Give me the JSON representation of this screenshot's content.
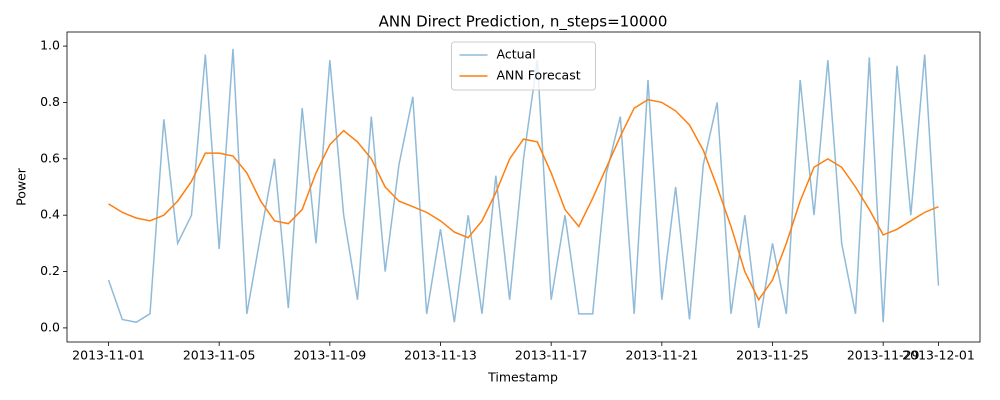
{
  "chart_data": {
    "type": "line",
    "title": "ANN Direct Prediction, n_steps=10000",
    "xlabel": "Timestamp",
    "ylabel": "Power",
    "x": [
      0,
      0.5,
      1,
      1.5,
      2,
      2.5,
      3,
      3.5,
      4,
      4.5,
      5,
      5.5,
      6,
      6.5,
      7,
      7.5,
      8,
      8.5,
      9,
      9.5,
      10,
      10.5,
      11,
      11.5,
      12,
      12.5,
      13,
      13.5,
      14,
      14.5,
      15,
      15.5,
      16,
      16.5,
      17,
      17.5,
      18,
      18.5,
      19,
      19.5,
      20,
      20.5,
      21,
      21.5,
      22,
      22.5,
      23,
      23.5,
      24,
      24.5,
      25,
      25.5,
      26,
      26.5,
      27,
      27.5,
      28,
      28.5,
      29,
      29.5,
      30
    ],
    "series": [
      {
        "name": "Actual",
        "color": "#1f77b4",
        "alpha": 0.5,
        "values": [
          0.17,
          0.03,
          0.02,
          0.05,
          0.74,
          0.3,
          0.4,
          0.97,
          0.28,
          0.99,
          0.05,
          0.33,
          0.6,
          0.07,
          0.78,
          0.3,
          0.95,
          0.4,
          0.1,
          0.75,
          0.2,
          0.58,
          0.82,
          0.05,
          0.35,
          0.02,
          0.4,
          0.05,
          0.54,
          0.1,
          0.6,
          0.95,
          0.1,
          0.4,
          0.05,
          0.05,
          0.55,
          0.75,
          0.05,
          0.88,
          0.1,
          0.5,
          0.03,
          0.58,
          0.8,
          0.05,
          0.4,
          0.0,
          0.3,
          0.05,
          0.88,
          0.4,
          0.95,
          0.3,
          0.05,
          0.96,
          0.02,
          0.93,
          0.4,
          0.97,
          0.15
        ]
      },
      {
        "name": "ANN Forecast",
        "color": "#ff7f0e",
        "alpha": 1,
        "values": [
          0.44,
          0.41,
          0.39,
          0.38,
          0.4,
          0.45,
          0.52,
          0.62,
          0.62,
          0.61,
          0.55,
          0.45,
          0.38,
          0.37,
          0.42,
          0.55,
          0.65,
          0.7,
          0.66,
          0.6,
          0.5,
          0.45,
          0.43,
          0.41,
          0.38,
          0.34,
          0.32,
          0.38,
          0.48,
          0.6,
          0.67,
          0.66,
          0.55,
          0.42,
          0.36,
          0.46,
          0.57,
          0.68,
          0.78,
          0.81,
          0.8,
          0.77,
          0.72,
          0.63,
          0.5,
          0.36,
          0.2,
          0.1,
          0.17,
          0.3,
          0.45,
          0.57,
          0.6,
          0.57,
          0.5,
          0.42,
          0.33,
          0.35,
          0.38,
          0.41,
          0.43
        ]
      }
    ],
    "xlim": [
      -1.5,
      31.5
    ],
    "xticks": [
      {
        "value": 0,
        "label": "2013-11-01"
      },
      {
        "value": 4,
        "label": "2013-11-05"
      },
      {
        "value": 8,
        "label": "2013-11-09"
      },
      {
        "value": 12,
        "label": "2013-11-13"
      },
      {
        "value": 16,
        "label": "2013-11-17"
      },
      {
        "value": 20,
        "label": "2013-11-21"
      },
      {
        "value": 24,
        "label": "2013-11-25"
      },
      {
        "value": 28,
        "label": "2013-11-29"
      },
      {
        "value": 30,
        "label": "2013-12-01"
      }
    ],
    "ylim": [
      -0.05,
      1.05
    ],
    "yticks": [
      {
        "value": 0,
        "label": "0.0"
      },
      {
        "value": 0.2,
        "label": "0.2"
      },
      {
        "value": 0.4,
        "label": "0.4"
      },
      {
        "value": 0.6,
        "label": "0.6"
      },
      {
        "value": 0.8,
        "label": "0.8"
      },
      {
        "value": 1,
        "label": "1.0"
      }
    ],
    "grid": false,
    "legend": "upper center"
  }
}
